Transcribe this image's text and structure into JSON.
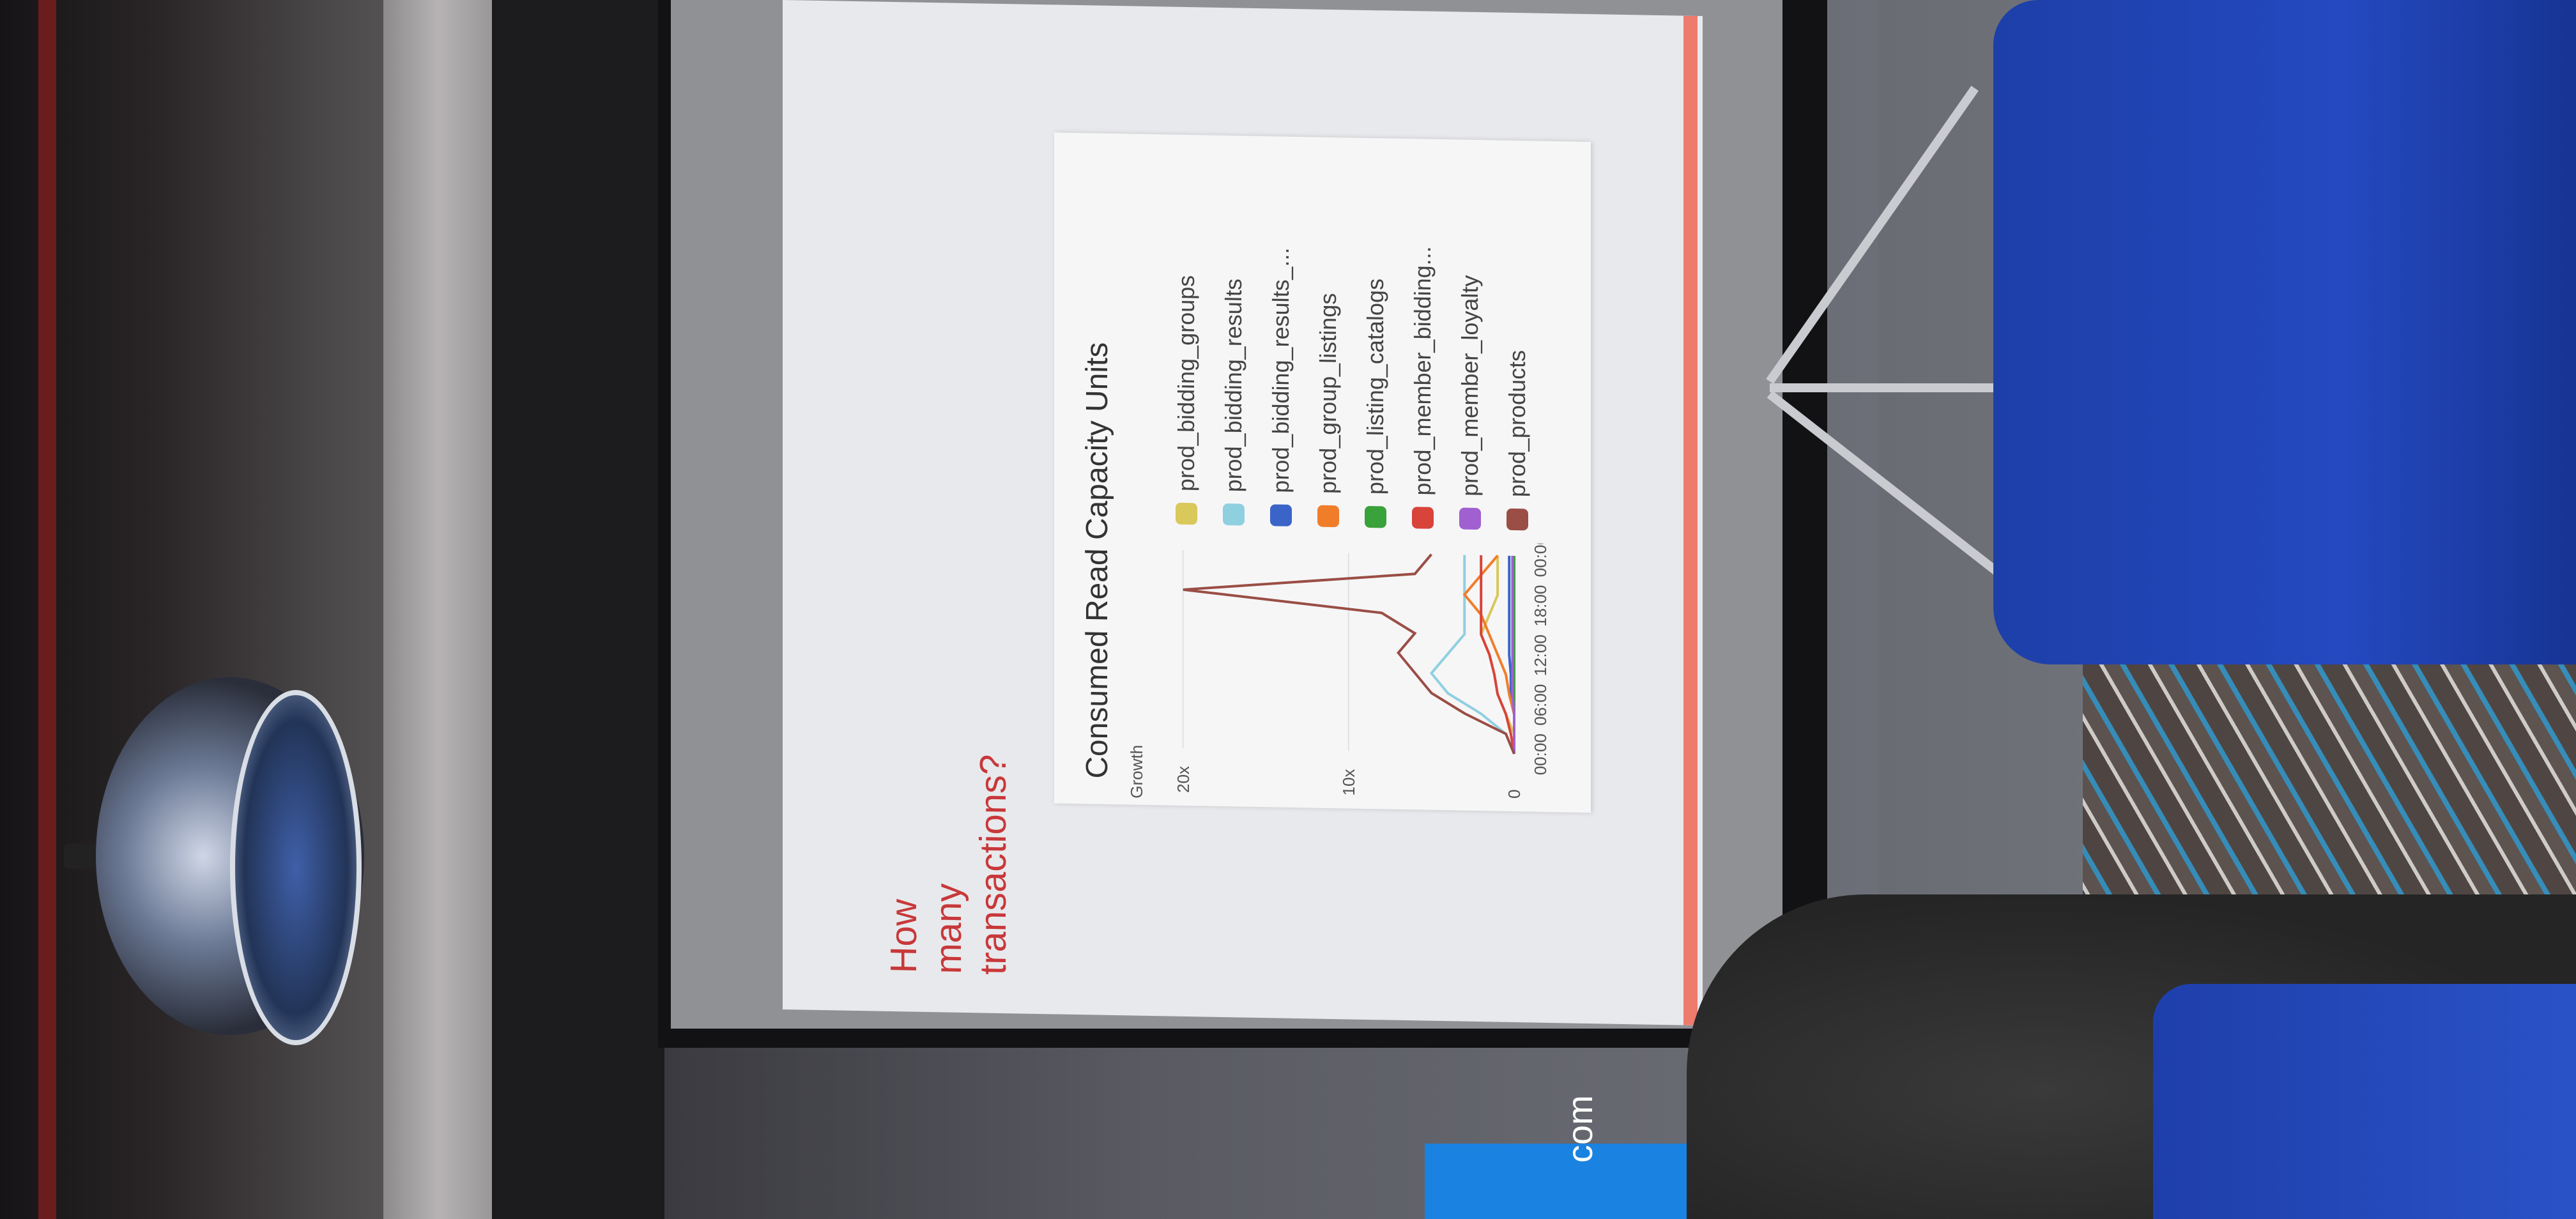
{
  "slide": {
    "title": "How many transactions?",
    "accent_color": "#ee7b6c",
    "title_color": "#c8383a"
  },
  "chart_data": {
    "type": "line",
    "title": "Consumed Read Capacity Units",
    "ylabel": "Growth",
    "y_ticks": [
      "0",
      "10x",
      "20x"
    ],
    "x_ticks": [
      "00:00",
      "06:00",
      "12:00",
      "18:00",
      "00:00"
    ],
    "x": [
      "00:00",
      "03:00",
      "06:00",
      "09:00",
      "10:00",
      "12:00",
      "14:00",
      "16:00",
      "18:00",
      "21:00",
      "00:00"
    ],
    "series": [
      {
        "name": "prod_bidding_groups",
        "color": "#d9c85a",
        "values": [
          0,
          0,
          0.5,
          1,
          1.2,
          1.5,
          2,
          1.5,
          1,
          1,
          1
        ]
      },
      {
        "name": "prod_bidding_results",
        "color": "#8fd0e0",
        "values": [
          0,
          0.5,
          2,
          4,
          5,
          4,
          3,
          3,
          3,
          3,
          3
        ]
      },
      {
        "name": "prod_bidding_results_...",
        "color": "#3a64c8",
        "values": [
          0,
          0,
          0,
          0.2,
          0.2,
          0.3,
          0.3,
          0.3,
          0.3,
          0.3,
          0.3
        ]
      },
      {
        "name": "prod_group_listings",
        "color": "#f07d2a",
        "values": [
          0,
          0,
          0,
          0.3,
          0.5,
          1,
          1.5,
          2,
          3,
          2,
          1
        ]
      },
      {
        "name": "prod_listing_catalogs",
        "color": "#3aa23a",
        "values": [
          0,
          0,
          0,
          0,
          0,
          0,
          0,
          0,
          0,
          0,
          0
        ]
      },
      {
        "name": "prod_member_bidding...",
        "color": "#d8433a",
        "values": [
          0,
          0.2,
          0.5,
          1,
          1.2,
          1.5,
          2,
          2,
          2,
          2,
          2
        ]
      },
      {
        "name": "prod_member_loyalty",
        "color": "#a060d0",
        "values": [
          0,
          0,
          0,
          0.1,
          0.1,
          0.1,
          0.1,
          0.1,
          0.1,
          0.1,
          0.1
        ]
      },
      {
        "name": "prod_products",
        "color": "#9a4e45",
        "values": [
          0,
          0.5,
          3,
          5,
          6,
          7,
          6,
          8,
          20,
          6,
          5
        ]
      }
    ],
    "ylim": [
      0,
      22
    ],
    "grid": true,
    "legend_placement": "right"
  },
  "background": {
    "sign_text": "com"
  }
}
